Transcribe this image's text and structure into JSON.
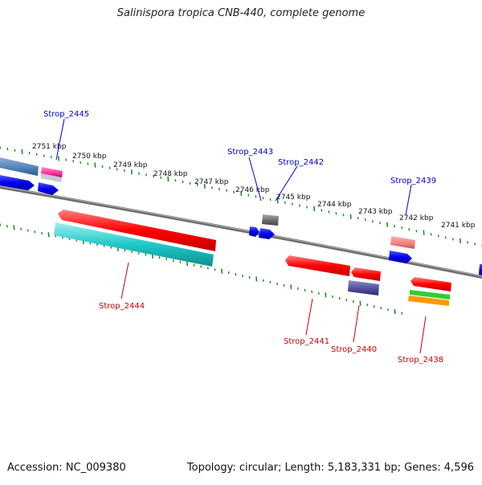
{
  "title": "Salinispora tropica CNB-440, complete genome",
  "footer": {
    "accession": "Accession: NC_009380",
    "topology": "Topology: circular; Length: 5,183,331 bp; Genes: 4,596"
  },
  "scale_labels": [
    "2751 kbp",
    "2750 kbp",
    "2749 kbp",
    "2748 kbp",
    "2747 kbp",
    "2746 kbp",
    "2745 kbp",
    "2744 kbp",
    "2743 kbp",
    "2742 kbp",
    "2741 kbp"
  ],
  "gene_labels": {
    "forward": [
      "Strop_2445",
      "Strop_2443",
      "Strop_2442",
      "Strop_2439"
    ],
    "reverse": [
      "Strop_2444",
      "Strop_2441",
      "Strop_2440",
      "Strop_2438"
    ]
  },
  "colors": {
    "forward_label": "#0000cc",
    "reverse_label": "#cc0000",
    "backbone": "#808080",
    "ticks": "#228b22",
    "red": "#ff0000",
    "blue": "#0000ee",
    "cyan": "#20c8c8",
    "steelblue": "#4f7fb8",
    "pink": "#ff3399",
    "gray": "#666666",
    "salmon": "#f08080",
    "slate": "#4b4b9a",
    "green": "#33cc33",
    "orange": "#ff9900"
  }
}
